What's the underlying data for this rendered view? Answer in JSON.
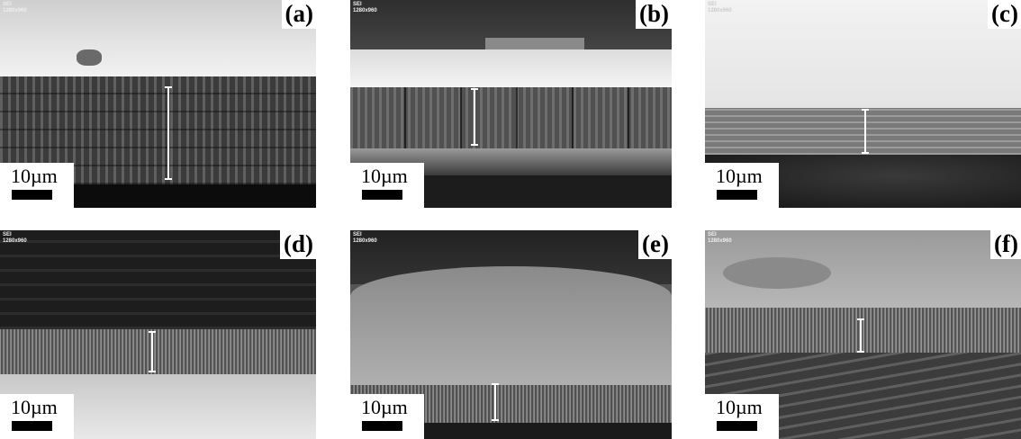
{
  "figure": {
    "panels": [
      {
        "label": "(a)",
        "header": "SEI\n1280x960",
        "scale_bar": "10µm"
      },
      {
        "label": "(b)",
        "header": "SEI\n1280x960",
        "scale_bar": "10µm"
      },
      {
        "label": "(c)",
        "header": "SEI\n1280x960",
        "scale_bar": "10µm"
      },
      {
        "label": "(d)",
        "header": "SEI\n1280x960",
        "scale_bar": "10µm"
      },
      {
        "label": "(e)",
        "header": "SEI\n1280x960",
        "scale_bar": "10µm"
      },
      {
        "label": "(f)",
        "header": "SEI\n1280x960",
        "scale_bar": "10µm"
      }
    ]
  }
}
